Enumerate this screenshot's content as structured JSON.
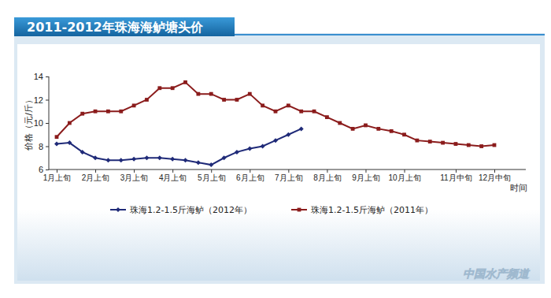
{
  "chart_data": {
    "type": "line",
    "title": "2011-2012年珠海海鲈塘头价",
    "x_label": "时间",
    "y_label": "价格（元/斤）",
    "source": "中国水产频道",
    "categories": [
      "1月上旬",
      null,
      null,
      "2月上旬",
      null,
      null,
      "3月上旬",
      null,
      null,
      "4月上旬",
      null,
      null,
      "5月上旬",
      null,
      null,
      "6月上旬",
      null,
      null,
      "7月上旬",
      null,
      null,
      "8月上旬",
      null,
      null,
      "9月上旬",
      null,
      null,
      "10月上旬",
      null,
      null,
      null,
      "11月中旬",
      null,
      null,
      "12月中旬"
    ],
    "series": [
      {
        "name": "珠海1.2-1.5斤海鲈（2012年）",
        "color": "#1f2a78",
        "marker": "diamond",
        "values": [
          8.2,
          8.3,
          7.5,
          7.0,
          6.8,
          6.8,
          6.9,
          7.0,
          7.0,
          6.9,
          6.8,
          6.6,
          6.4,
          7.0,
          7.5,
          7.8,
          8.0,
          8.5,
          9.0,
          9.5,
          null,
          null,
          null,
          null,
          null,
          null,
          null,
          null,
          null,
          null,
          null,
          null,
          null,
          null,
          null
        ]
      },
      {
        "name": "珠海1.2-1.5斤海鲈（2011年）",
        "color": "#8b1c1c",
        "marker": "square",
        "values": [
          8.8,
          10.0,
          10.8,
          11.0,
          11.0,
          11.0,
          11.5,
          12.0,
          13.0,
          13.0,
          13.5,
          12.5,
          12.5,
          12.0,
          12.0,
          12.5,
          11.5,
          11.0,
          11.5,
          11.0,
          11.0,
          10.5,
          10.0,
          9.5,
          9.8,
          9.5,
          9.3,
          9.0,
          8.5,
          8.4,
          8.3,
          8.2,
          8.1,
          8.0,
          8.1
        ]
      }
    ],
    "ylim": [
      6,
      14
    ],
    "yticks": [
      6,
      8,
      10,
      12,
      14
    ],
    "grid": false,
    "legend": "bottom"
  }
}
